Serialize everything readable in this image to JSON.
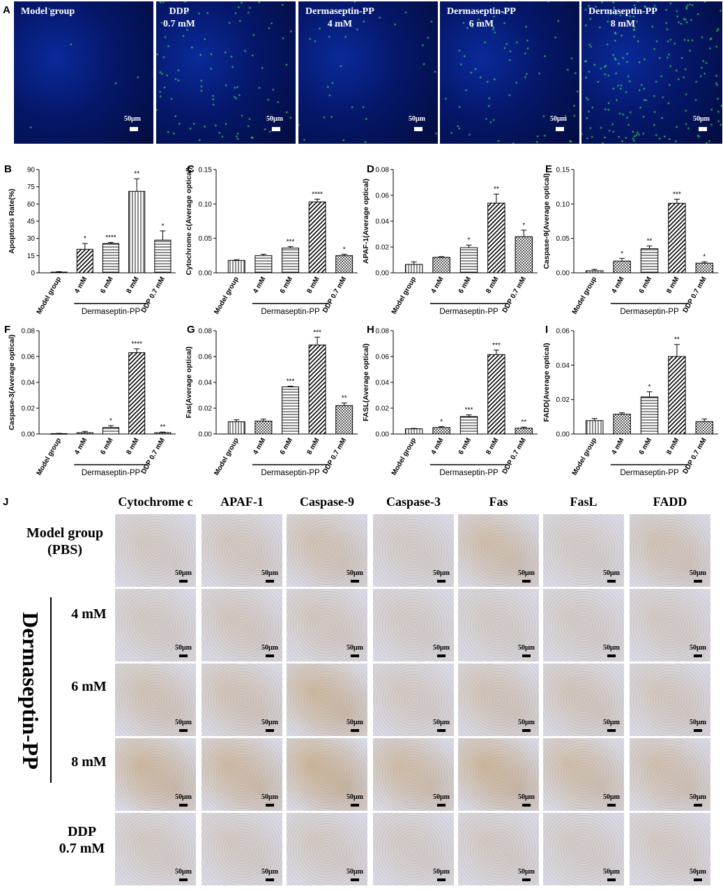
{
  "panelA": {
    "letter": "A",
    "images": [
      {
        "label_lines": [
          "Model group"
        ],
        "scale": "50μm",
        "green": 0.02
      },
      {
        "label_lines": [
          "DDP",
          "0.7 mM"
        ],
        "scale": "50μm",
        "green": 0.35
      },
      {
        "label_lines": [
          "Dermaseptin-PP",
          "4 mM"
        ],
        "scale": "50μm",
        "green": 0.12
      },
      {
        "label_lines": [
          "Dermaseptin-PP",
          "6 mM"
        ],
        "scale": "50μm",
        "green": 0.25
      },
      {
        "label_lines": [
          "Dermaseptin-PP",
          "8 mM"
        ],
        "scale": "50μm",
        "green": 0.75
      }
    ]
  },
  "chart_data": [
    {
      "letter": "B",
      "type": "bar",
      "ylabel": "Apoptosis Rate(%)",
      "yticks": [
        "0",
        "15",
        "30",
        "45",
        "60",
        "75",
        "90"
      ],
      "ylim": [
        0,
        90
      ],
      "categories": [
        "Model group",
        "4 mM",
        "6 mM",
        "8 mM",
        "DDP 0.7 mM"
      ],
      "values": [
        0.6,
        20.5,
        25.5,
        71,
        28.5
      ],
      "errors": [
        0.4,
        5,
        1,
        11,
        8
      ],
      "sig": [
        "",
        "*",
        "****",
        "**",
        "*"
      ],
      "patterns": [
        "solid",
        "diag",
        "hlines",
        "vlines",
        "hlines"
      ],
      "group_label": "Dermaseptin-PP"
    },
    {
      "letter": "C",
      "type": "bar",
      "ylabel": "Cytochrome c(Average optical)",
      "yticks": [
        "0.00",
        "0.05",
        "0.10",
        "0.15"
      ],
      "ylim": [
        0,
        0.15
      ],
      "categories": [
        "Model group",
        "4 mM",
        "6 mM",
        "8 mM",
        "DDP 0.7 mM"
      ],
      "values": [
        0.018,
        0.025,
        0.036,
        0.103,
        0.025
      ],
      "errors": [
        0.001,
        0.002,
        0.002,
        0.004,
        0.002
      ],
      "sig": [
        "",
        "",
        "***",
        "****",
        "*"
      ],
      "patterns": [
        "vlines",
        "hlines",
        "hlines",
        "diag",
        "check"
      ],
      "group_label": "Dermaseptin-PP"
    },
    {
      "letter": "D",
      "type": "bar",
      "ylabel": "APAF-1(Average optical)",
      "yticks": [
        "0.00",
        "0.02",
        "0.04",
        "0.06",
        "0.08"
      ],
      "ylim": [
        0,
        0.08
      ],
      "categories": [
        "Model group",
        "4 mM",
        "6 mM",
        "8 mM",
        "DDP 0.7 mM"
      ],
      "values": [
        0.0065,
        0.012,
        0.0195,
        0.054,
        0.028
      ],
      "errors": [
        0.002,
        0.0005,
        0.002,
        0.007,
        0.005
      ],
      "sig": [
        "",
        "",
        "*",
        "**",
        "*"
      ],
      "patterns": [
        "vlines",
        "check",
        "hlines",
        "diag",
        "check"
      ],
      "group_label": "Dermaseptin-PP"
    },
    {
      "letter": "E",
      "type": "bar",
      "ylabel": "Caspase-9(Average optical)",
      "yticks": [
        "0.00",
        "0.05",
        "0.10",
        "0.15"
      ],
      "ylim": [
        0,
        0.15
      ],
      "categories": [
        "Model group",
        "4 mM",
        "6 mM",
        "8 mM",
        "DDP 0.7 mM"
      ],
      "values": [
        0.003,
        0.017,
        0.035,
        0.101,
        0.014
      ],
      "errors": [
        0.002,
        0.004,
        0.004,
        0.006,
        0.002
      ],
      "sig": [
        "",
        "*",
        "**",
        "***",
        "*"
      ],
      "patterns": [
        "vlines",
        "check",
        "hlines",
        "diag",
        "check"
      ],
      "group_label": "Dermaseptin-PP"
    },
    {
      "letter": "F",
      "type": "bar",
      "ylabel": "Caspase-3(Average optical)",
      "yticks": [
        "0.00",
        "0.02",
        "0.04",
        "0.06",
        "0.08"
      ],
      "ylim": [
        0,
        0.08
      ],
      "categories": [
        "Model group",
        "4 mM",
        "6 mM",
        "8 mM",
        "DDP 0.7 mM"
      ],
      "values": [
        0.0003,
        0.001,
        0.005,
        0.063,
        0.001
      ],
      "errors": [
        0.0002,
        0.001,
        0.0015,
        0.003,
        0.0005
      ],
      "sig": [
        "",
        "",
        "*",
        "****",
        "**"
      ],
      "patterns": [
        "vlines",
        "check",
        "hlines",
        "diag",
        "check"
      ],
      "group_label": "Dermaseptin-PP"
    },
    {
      "letter": "G",
      "type": "bar",
      "ylabel": "Fas(Average optical)",
      "yticks": [
        "0.00",
        "0.02",
        "0.04",
        "0.06",
        "0.08"
      ],
      "ylim": [
        0,
        0.08
      ],
      "categories": [
        "Model group",
        "4 mM",
        "6 mM",
        "8 mM",
        "DDP 0.7 mM"
      ],
      "values": [
        0.0095,
        0.01,
        0.0365,
        0.069,
        0.022
      ],
      "errors": [
        0.0015,
        0.0015,
        0.0005,
        0.006,
        0.002
      ],
      "sig": [
        "",
        "",
        "***",
        "***",
        "**"
      ],
      "patterns": [
        "vlines",
        "check",
        "hlines",
        "diag",
        "check"
      ],
      "group_label": "Dermaseptin-PP"
    },
    {
      "letter": "H",
      "type": "bar",
      "ylabel": "FASL(Average optical)",
      "yticks": [
        "0.00",
        "0.02",
        "0.04",
        "0.06",
        "0.08"
      ],
      "ylim": [
        0,
        0.08
      ],
      "categories": [
        "Model group",
        "4 mM",
        "6 mM",
        "8 mM",
        "DDP 0.7 mM"
      ],
      "values": [
        0.004,
        0.005,
        0.0135,
        0.0615,
        0.0045
      ],
      "errors": [
        0.0003,
        0.0007,
        0.0013,
        0.0035,
        0.0008
      ],
      "sig": [
        "",
        "*",
        "***",
        "***",
        "**"
      ],
      "patterns": [
        "vlines",
        "check",
        "hlines",
        "diag",
        "check"
      ],
      "group_label": "Dermaseptin-PP"
    },
    {
      "letter": "I",
      "type": "bar",
      "ylabel": "FADD(Average optical)",
      "yticks": [
        "0.00",
        "0.02",
        "0.04",
        "0.06"
      ],
      "ylim": [
        0,
        0.06
      ],
      "categories": [
        "Model group",
        "4 mM",
        "6 mM",
        "8 mM",
        "DDP 0.7 mM"
      ],
      "values": [
        0.0078,
        0.0115,
        0.0215,
        0.045,
        0.0072
      ],
      "errors": [
        0.0012,
        0.0008,
        0.003,
        0.007,
        0.0015
      ],
      "sig": [
        "",
        "",
        "*",
        "**",
        ""
      ],
      "patterns": [
        "vlines",
        "check",
        "hlines",
        "diag",
        "check"
      ],
      "group_label": "Dermaseptin-PP"
    }
  ],
  "panelJ": {
    "letter": "J",
    "columns": [
      "Cytochrome c",
      "APAF-1",
      "Caspase-9",
      "Caspase-3",
      "Fas",
      "FasL",
      "FADD"
    ],
    "row_labels": [
      [
        "Model group",
        "(PBS)"
      ],
      [
        "4 mM"
      ],
      [
        "6 mM"
      ],
      [
        "8 mM"
      ],
      [
        "DDP",
        "0.7 mM"
      ]
    ],
    "group_label": "Dermaseptin-PP",
    "scale": "50μm",
    "brown": [
      [
        0.15,
        0.2,
        0.35,
        0.1,
        0.45,
        0.1,
        0.35
      ],
      [
        0.15,
        0.2,
        0.2,
        0.1,
        0.1,
        0.1,
        0.15
      ],
      [
        0.3,
        0.3,
        0.6,
        0.15,
        0.3,
        0.25,
        0.2
      ],
      [
        0.6,
        0.55,
        0.7,
        0.5,
        0.65,
        0.45,
        0.4
      ],
      [
        0.15,
        0.15,
        0.15,
        0.1,
        0.15,
        0.1,
        0.15
      ]
    ]
  }
}
